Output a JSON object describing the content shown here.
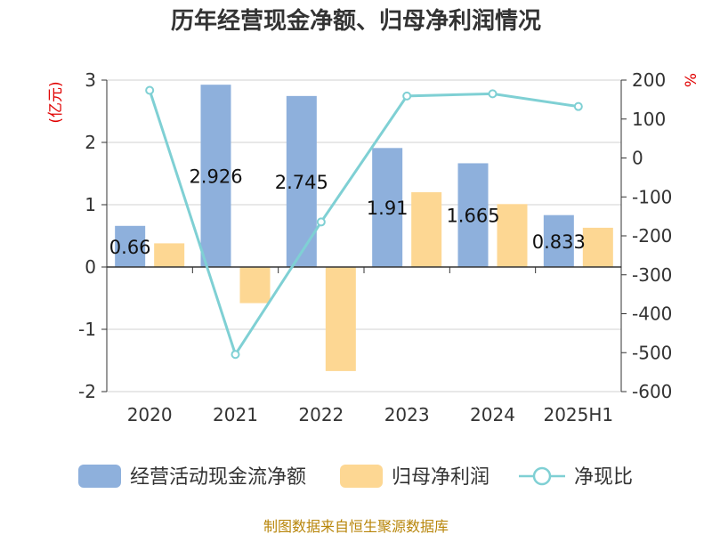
{
  "title": "历年经营现金净额、归母净利润情况",
  "source": "制图数据来自恒生聚源数据库",
  "chart_data": {
    "type": "bar",
    "categories": [
      "2020",
      "2021",
      "2022",
      "2023",
      "2024",
      "2025H1"
    ],
    "series": [
      {
        "name": "经营活动现金流净额",
        "kind": "bar",
        "axis": "left",
        "color": "#8eb0dc",
        "values": [
          0.66,
          2.926,
          2.745,
          1.91,
          1.665,
          0.833
        ],
        "labels": [
          "0.66",
          "2.926",
          "2.745",
          "1.91",
          "1.665",
          "0.833"
        ]
      },
      {
        "name": "归母净利润",
        "kind": "bar",
        "axis": "left",
        "color": "#fdd793",
        "values": [
          0.38,
          -0.58,
          -1.67,
          1.2,
          1.01,
          0.63
        ]
      },
      {
        "name": "净现比",
        "kind": "line",
        "axis": "right",
        "color": "#7fd0d4",
        "values": [
          173.7,
          -504.5,
          -164.4,
          159.2,
          164.9,
          132.2
        ]
      }
    ],
    "y_left": {
      "unit": "(亿元)",
      "lim": [
        -2,
        3
      ],
      "ticks": [
        3,
        2,
        1,
        0,
        -1,
        -2
      ]
    },
    "y_right": {
      "unit": "%",
      "lim": [
        -600,
        200
      ],
      "ticks": [
        200,
        100,
        0,
        -100,
        -200,
        -300,
        -400,
        -500,
        -600
      ]
    },
    "grid": true,
    "legend_position": "bottom"
  }
}
